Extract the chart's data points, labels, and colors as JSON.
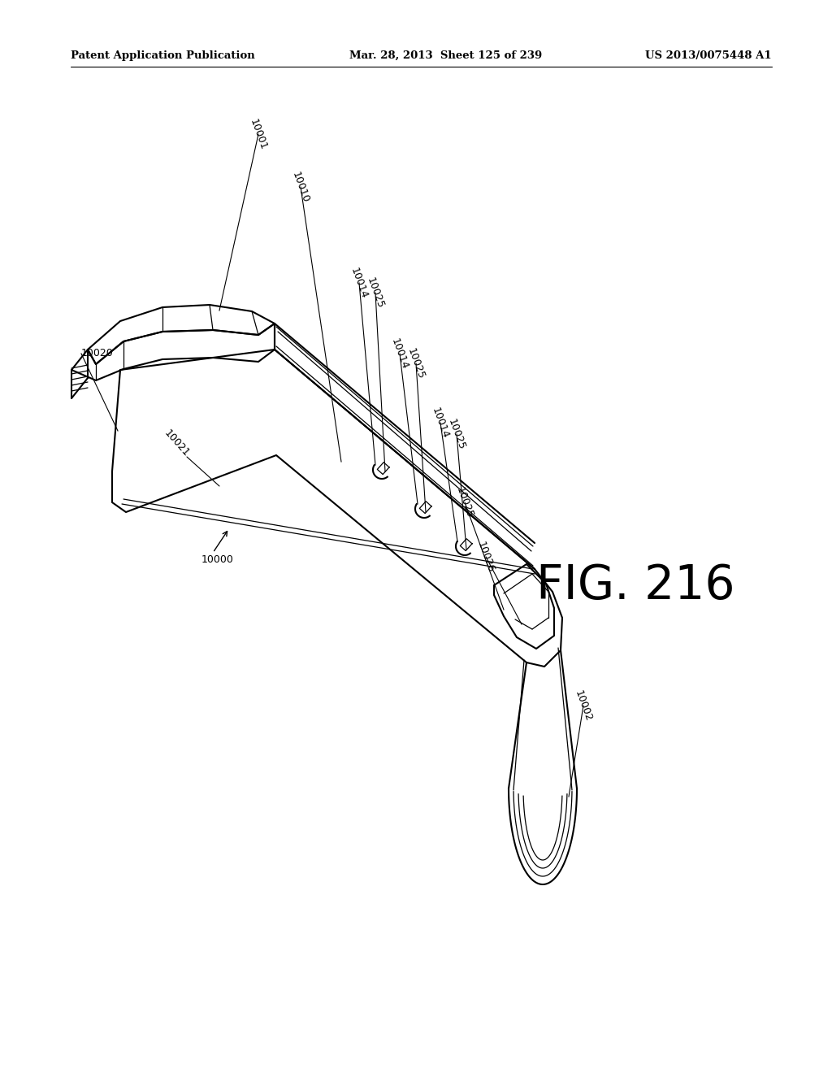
{
  "header_left": "Patent Application Publication",
  "header_mid": "Mar. 28, 2013  Sheet 125 of 239",
  "header_right": "US 2013/0075448 A1",
  "fig_label": "FIG. 216",
  "bg_color": "#ffffff",
  "line_color": "#000000",
  "text_color": "#000000",
  "header_fontsize": 9.5,
  "label_fontsize": 9,
  "fig_label_fontsize": 42
}
